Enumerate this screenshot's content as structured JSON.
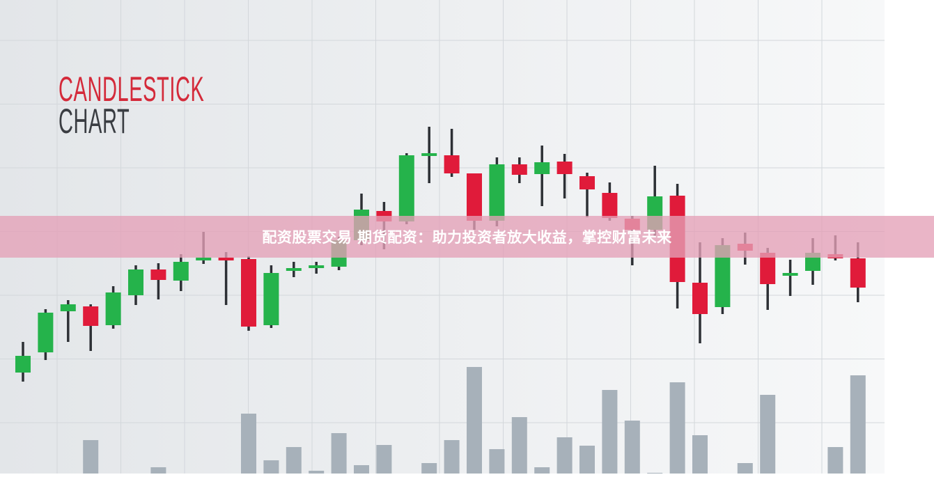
{
  "banner": {
    "text": "配资股票交易 期货配资：助力投资者放大收益，掌控财富未来"
  },
  "colors": {
    "up": "#25b34b",
    "down": "#e01b3a",
    "wick": "#2d3035",
    "volume": "#a7b1ba",
    "title_primary": "#d42a3a",
    "title_secondary": "#3a3d42",
    "banner": "#e4a0b7"
  },
  "chart_data": {
    "type": "candlestick",
    "title": "CANDLESTICK",
    "subtitle": "CHART",
    "xlabel": "",
    "ylabel": "",
    "grid": true,
    "axes_visible": false,
    "ylim": [
      0,
      60
    ],
    "candles": [
      {
        "o": 6.5,
        "h": 10.9,
        "l": 5.2,
        "c": 8.9
      },
      {
        "o": 9.4,
        "h": 15.6,
        "l": 8.3,
        "c": 15.1
      },
      {
        "o": 15.3,
        "h": 16.9,
        "l": 10.9,
        "c": 16.3
      },
      {
        "o": 16.0,
        "h": 16.3,
        "l": 9.6,
        "c": 13.2
      },
      {
        "o": 13.3,
        "h": 18.9,
        "l": 12.8,
        "c": 18.0
      },
      {
        "o": 17.6,
        "h": 21.9,
        "l": 16.2,
        "c": 21.3
      },
      {
        "o": 21.3,
        "h": 22.2,
        "l": 17.0,
        "c": 19.8
      },
      {
        "o": 19.7,
        "h": 23.5,
        "l": 18.2,
        "c": 22.4
      },
      {
        "o": 22.7,
        "h": 26.7,
        "l": 22.1,
        "c": 22.9
      },
      {
        "o": 22.9,
        "h": 23.8,
        "l": 16.2,
        "c": 22.7
      },
      {
        "o": 22.8,
        "h": 23.2,
        "l": 12.5,
        "c": 13.1
      },
      {
        "o": 13.3,
        "h": 21.9,
        "l": 12.9,
        "c": 20.8
      },
      {
        "o": 21.2,
        "h": 22.4,
        "l": 20.2,
        "c": 21.4
      },
      {
        "o": 21.6,
        "h": 22.4,
        "l": 20.7,
        "c": 21.8
      },
      {
        "o": 21.7,
        "h": 26.0,
        "l": 21.2,
        "c": 25.5
      },
      {
        "o": 25.5,
        "h": 32.2,
        "l": 24.8,
        "c": 29.9
      },
      {
        "o": 29.7,
        "h": 31.0,
        "l": 24.2,
        "c": 28.2
      },
      {
        "o": 28.2,
        "h": 38.0,
        "l": 27.8,
        "c": 37.7
      },
      {
        "o": 37.7,
        "h": 41.8,
        "l": 33.7,
        "c": 37.9
      },
      {
        "o": 37.7,
        "h": 41.5,
        "l": 34.6,
        "c": 35.1
      },
      {
        "o": 35.1,
        "h": 35.1,
        "l": 27.0,
        "c": 28.3
      },
      {
        "o": 28.3,
        "h": 37.4,
        "l": 27.5,
        "c": 36.4
      },
      {
        "o": 36.4,
        "h": 37.4,
        "l": 33.7,
        "c": 34.9
      },
      {
        "o": 35.0,
        "h": 39.1,
        "l": 30.4,
        "c": 36.7
      },
      {
        "o": 36.8,
        "h": 37.9,
        "l": 31.5,
        "c": 35.0
      },
      {
        "o": 34.7,
        "h": 35.2,
        "l": 28.8,
        "c": 32.8
      },
      {
        "o": 32.3,
        "h": 33.8,
        "l": 28.3,
        "c": 28.7
      },
      {
        "o": 28.6,
        "h": 29.0,
        "l": 21.9,
        "c": 27.0
      },
      {
        "o": 27.0,
        "h": 36.2,
        "l": 26.0,
        "c": 31.8
      },
      {
        "o": 31.9,
        "h": 33.6,
        "l": 15.7,
        "c": 19.5
      },
      {
        "o": 19.4,
        "h": 25.2,
        "l": 10.7,
        "c": 14.9
      },
      {
        "o": 15.9,
        "h": 25.8,
        "l": 14.9,
        "c": 24.8
      },
      {
        "o": 25.0,
        "h": 26.6,
        "l": 22.0,
        "c": 24.0
      },
      {
        "o": 23.7,
        "h": 24.4,
        "l": 15.5,
        "c": 19.2
      },
      {
        "o": 20.4,
        "h": 22.7,
        "l": 17.5,
        "c": 20.8
      },
      {
        "o": 21.1,
        "h": 25.8,
        "l": 19.1,
        "c": 23.7
      },
      {
        "o": 23.5,
        "h": 26.2,
        "l": 22.6,
        "c": 22.9
      },
      {
        "o": 22.9,
        "h": 25.2,
        "l": 16.6,
        "c": 18.7
      }
    ],
    "volume": [
      0,
      0,
      0,
      48,
      0,
      0,
      9,
      0,
      0,
      0,
      86,
      19,
      38,
      4,
      58,
      12,
      41,
      0,
      15,
      48,
      153,
      35,
      81,
      9,
      52,
      40,
      120,
      76,
      1,
      131,
      55,
      0,
      15,
      113,
      0,
      0,
      38,
      141
    ]
  }
}
